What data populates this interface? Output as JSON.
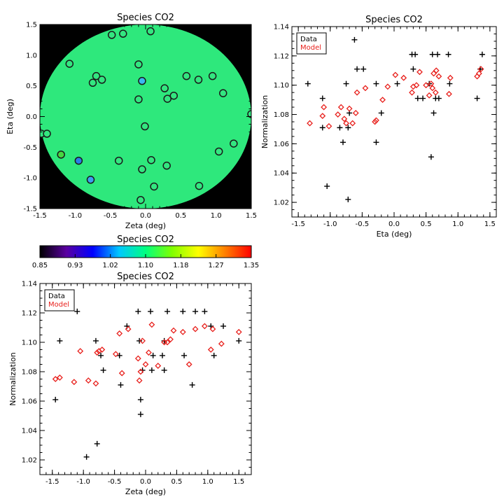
{
  "chart_data": [
    {
      "id": "map",
      "type": "scatter",
      "title": "Species CO2",
      "xlabel": "Zeta (deg)",
      "ylabel": "Eta (deg)",
      "xlim": [
        -1.5,
        1.5
      ],
      "ylim": [
        -1.5,
        1.5
      ],
      "xticks": [
        "-1.5",
        "-1.0",
        "-0.5",
        "0.0",
        "0.5",
        "1.0",
        "1.5"
      ],
      "yticks": [
        "-1.5",
        "-1.0",
        "-0.5",
        "0.0",
        "0.5",
        "1.0",
        "1.5"
      ],
      "background": "#000000",
      "disk_color": "#2ee87c",
      "points": [
        {
          "x": 0.07,
          "y": 1.39,
          "c": "#33e680"
        },
        {
          "x": -0.32,
          "y": 1.35,
          "c": "#33e680"
        },
        {
          "x": -0.48,
          "y": 1.33,
          "c": "#33e680"
        },
        {
          "x": -1.08,
          "y": 0.86,
          "c": "#33e680"
        },
        {
          "x": -0.1,
          "y": 0.85,
          "c": "#33e680"
        },
        {
          "x": -0.7,
          "y": 0.66,
          "c": "#33e680"
        },
        {
          "x": 0.58,
          "y": 0.66,
          "c": "#33e680"
        },
        {
          "x": 0.95,
          "y": 0.66,
          "c": "#33e680"
        },
        {
          "x": -0.62,
          "y": 0.6,
          "c": "#33e680"
        },
        {
          "x": 0.75,
          "y": 0.6,
          "c": "#33e680"
        },
        {
          "x": -0.75,
          "y": 0.55,
          "c": "#33e680"
        },
        {
          "x": -0.05,
          "y": 0.58,
          "c": "#3ab8f0"
        },
        {
          "x": 0.27,
          "y": 0.46,
          "c": "#33e680"
        },
        {
          "x": 1.1,
          "y": 0.38,
          "c": "#33e680"
        },
        {
          "x": 0.4,
          "y": 0.34,
          "c": "#33e680"
        },
        {
          "x": 0.31,
          "y": 0.29,
          "c": "#33e680"
        },
        {
          "x": -0.1,
          "y": 0.28,
          "c": "#33e680"
        },
        {
          "x": 1.5,
          "y": 0.04,
          "c": "#33e680"
        },
        {
          "x": -0.01,
          "y": -0.16,
          "c": "#33e680"
        },
        {
          "x": -1.48,
          "y": -0.28,
          "c": "#33e680"
        },
        {
          "x": -1.4,
          "y": -0.28,
          "c": "#33e680"
        },
        {
          "x": 1.25,
          "y": -0.44,
          "c": "#33e680"
        },
        {
          "x": 1.04,
          "y": -0.57,
          "c": "#33e680"
        },
        {
          "x": -1.2,
          "y": -0.62,
          "c": "#46d640"
        },
        {
          "x": 0.08,
          "y": -0.71,
          "c": "#33e680"
        },
        {
          "x": -0.95,
          "y": -0.72,
          "c": "#2a7ee8"
        },
        {
          "x": -0.38,
          "y": -0.72,
          "c": "#33e680"
        },
        {
          "x": 0.3,
          "y": -0.8,
          "c": "#33e680"
        },
        {
          "x": -0.05,
          "y": -0.86,
          "c": "#33e680"
        },
        {
          "x": -0.78,
          "y": -1.03,
          "c": "#3aa0f0"
        },
        {
          "x": 0.12,
          "y": -1.14,
          "c": "#33e680"
        },
        {
          "x": 0.76,
          "y": -1.13,
          "c": "#33e680"
        },
        {
          "x": -0.07,
          "y": -1.36,
          "c": "#33e680"
        }
      ]
    },
    {
      "id": "colorbar",
      "type": "heatmap",
      "title": "Species CO2",
      "range": [
        0.85,
        1.35
      ],
      "ticks": [
        "0.85",
        "0.93",
        "1.02",
        "1.10",
        "1.18",
        "1.27",
        "1.35"
      ],
      "colors": [
        "#000000",
        "#5a00a0",
        "#0000ff",
        "#00c8ff",
        "#00ff80",
        "#80ff00",
        "#ffff00",
        "#ff8000",
        "#ff0000"
      ]
    },
    {
      "id": "eta",
      "type": "scatter",
      "title": "Species CO2",
      "xlabel": "Eta (deg)",
      "ylabel": "Normalization",
      "xlim": [
        -1.6,
        1.6
      ],
      "ylim": [
        1.01,
        1.14
      ],
      "xticks": [
        "-1.5",
        "-1.0",
        "-0.5",
        "0.0",
        "0.5",
        "1.0",
        "1.5"
      ],
      "yticks": [
        "1.02",
        "1.04",
        "1.06",
        "1.08",
        "1.10",
        "1.12",
        "1.14"
      ],
      "legend": {
        "position": "top-left",
        "entries": [
          {
            "label": "Data",
            "color": "#000000"
          },
          {
            "label": "Model",
            "color": "#e8201c"
          }
        ]
      },
      "series": [
        {
          "name": "Data",
          "marker": "plus",
          "color": "#000000",
          "points": [
            [
              -1.35,
              1.101
            ],
            [
              -1.12,
              1.091
            ],
            [
              -1.12,
              1.071
            ],
            [
              -1.05,
              1.031
            ],
            [
              -0.85,
              1.071
            ],
            [
              -0.8,
              1.061
            ],
            [
              -0.75,
              1.101
            ],
            [
              -0.72,
              1.071
            ],
            [
              -0.72,
              1.022
            ],
            [
              -0.7,
              1.081
            ],
            [
              -0.62,
              1.131
            ],
            [
              -0.58,
              1.111
            ],
            [
              -0.48,
              1.111
            ],
            [
              -0.28,
              1.061
            ],
            [
              -0.28,
              1.101
            ],
            [
              -0.2,
              1.081
            ],
            [
              0.05,
              1.101
            ],
            [
              0.28,
              1.121
            ],
            [
              0.3,
              1.111
            ],
            [
              0.33,
              1.121
            ],
            [
              0.37,
              1.091
            ],
            [
              0.45,
              1.091
            ],
            [
              0.55,
              1.101
            ],
            [
              0.58,
              1.051
            ],
            [
              0.6,
              1.121
            ],
            [
              0.62,
              1.081
            ],
            [
              0.65,
              1.091
            ],
            [
              0.68,
              1.121
            ],
            [
              0.7,
              1.091
            ],
            [
              0.85,
              1.121
            ],
            [
              0.87,
              1.101
            ],
            [
              1.3,
              1.091
            ],
            [
              1.35,
              1.111
            ],
            [
              1.38,
              1.121
            ]
          ]
        },
        {
          "name": "Model",
          "marker": "diamond",
          "color": "#e8201c",
          "points": [
            [
              -1.32,
              1.074
            ],
            [
              -1.12,
              1.079
            ],
            [
              -1.1,
              1.085
            ],
            [
              -1.02,
              1.072
            ],
            [
              -0.88,
              1.08
            ],
            [
              -0.83,
              1.085
            ],
            [
              -0.78,
              1.077
            ],
            [
              -0.75,
              1.074
            ],
            [
              -0.7,
              1.084
            ],
            [
              -0.65,
              1.074
            ],
            [
              -0.6,
              1.081
            ],
            [
              -0.58,
              1.095
            ],
            [
              -0.45,
              1.098
            ],
            [
              -0.3,
              1.075
            ],
            [
              -0.28,
              1.076
            ],
            [
              -0.18,
              1.09
            ],
            [
              -0.1,
              1.099
            ],
            [
              0.02,
              1.107
            ],
            [
              0.15,
              1.105
            ],
            [
              0.28,
              1.095
            ],
            [
              0.3,
              1.099
            ],
            [
              0.35,
              1.1
            ],
            [
              0.4,
              1.109
            ],
            [
              0.5,
              1.1
            ],
            [
              0.55,
              1.093
            ],
            [
              0.58,
              1.101
            ],
            [
              0.6,
              1.098
            ],
            [
              0.62,
              1.108
            ],
            [
              0.65,
              1.095
            ],
            [
              0.66,
              1.11
            ],
            [
              0.7,
              1.106
            ],
            [
              0.86,
              1.094
            ],
            [
              0.88,
              1.105
            ],
            [
              1.3,
              1.106
            ],
            [
              1.33,
              1.108
            ],
            [
              1.36,
              1.111
            ]
          ]
        }
      ]
    },
    {
      "id": "zeta",
      "type": "scatter",
      "title": "Species CO2",
      "xlabel": "Zeta (deg)",
      "ylabel": "Normalization",
      "xlim": [
        -1.7,
        1.7
      ],
      "ylim": [
        1.01,
        1.14
      ],
      "xticks": [
        "-1.5",
        "-1.0",
        "-0.5",
        "0.0",
        "0.5",
        "1.0",
        "1.5"
      ],
      "yticks": [
        "1.02",
        "1.04",
        "1.06",
        "1.08",
        "1.10",
        "1.12",
        "1.14"
      ],
      "legend": {
        "position": "top-left",
        "entries": [
          {
            "label": "Data",
            "color": "#000000"
          },
          {
            "label": "Model",
            "color": "#e8201c"
          }
        ]
      },
      "series": [
        {
          "name": "Data",
          "marker": "plus",
          "color": "#000000",
          "points": [
            [
              -1.45,
              1.061
            ],
            [
              -1.38,
              1.101
            ],
            [
              -1.2,
              1.131
            ],
            [
              -1.1,
              1.121
            ],
            [
              -0.95,
              1.022
            ],
            [
              -0.8,
              1.101
            ],
            [
              -0.78,
              1.031
            ],
            [
              -0.72,
              1.091
            ],
            [
              -0.68,
              1.081
            ],
            [
              -0.42,
              1.091
            ],
            [
              -0.4,
              1.071
            ],
            [
              -0.3,
              1.111
            ],
            [
              -0.12,
              1.121
            ],
            [
              -0.1,
              1.101
            ],
            [
              -0.08,
              1.061
            ],
            [
              -0.08,
              1.051
            ],
            [
              -0.05,
              1.081
            ],
            [
              0.08,
              1.121
            ],
            [
              0.1,
              1.081
            ],
            [
              0.12,
              1.091
            ],
            [
              0.27,
              1.091
            ],
            [
              0.3,
              1.101
            ],
            [
              0.3,
              1.081
            ],
            [
              0.35,
              1.121
            ],
            [
              0.6,
              1.121
            ],
            [
              0.62,
              1.091
            ],
            [
              0.75,
              1.071
            ],
            [
              0.8,
              1.121
            ],
            [
              0.95,
              1.121
            ],
            [
              1.05,
              1.111
            ],
            [
              1.1,
              1.091
            ],
            [
              1.25,
              1.111
            ],
            [
              1.5,
              1.101
            ]
          ]
        },
        {
          "name": "Model",
          "marker": "diamond",
          "color": "#e8201c",
          "points": [
            [
              -1.45,
              1.075
            ],
            [
              -1.38,
              1.076
            ],
            [
              -1.15,
              1.073
            ],
            [
              -1.05,
              1.094
            ],
            [
              -0.92,
              1.074
            ],
            [
              -0.8,
              1.072
            ],
            [
              -0.78,
              1.093
            ],
            [
              -0.75,
              1.094
            ],
            [
              -0.7,
              1.095
            ],
            [
              -0.48,
              1.092
            ],
            [
              -0.42,
              1.106
            ],
            [
              -0.38,
              1.079
            ],
            [
              -0.28,
              1.109
            ],
            [
              -0.12,
              1.089
            ],
            [
              -0.1,
              1.074
            ],
            [
              -0.08,
              1.08
            ],
            [
              -0.05,
              1.101
            ],
            [
              0.0,
              1.085
            ],
            [
              0.05,
              1.093
            ],
            [
              0.1,
              1.112
            ],
            [
              0.2,
              1.084
            ],
            [
              0.3,
              1.1
            ],
            [
              0.35,
              1.1
            ],
            [
              0.4,
              1.102
            ],
            [
              0.45,
              1.108
            ],
            [
              0.6,
              1.107
            ],
            [
              0.7,
              1.085
            ],
            [
              0.8,
              1.109
            ],
            [
              0.95,
              1.111
            ],
            [
              1.05,
              1.095
            ],
            [
              1.08,
              1.109
            ],
            [
              1.22,
              1.099
            ],
            [
              1.5,
              1.107
            ]
          ]
        }
      ]
    }
  ]
}
